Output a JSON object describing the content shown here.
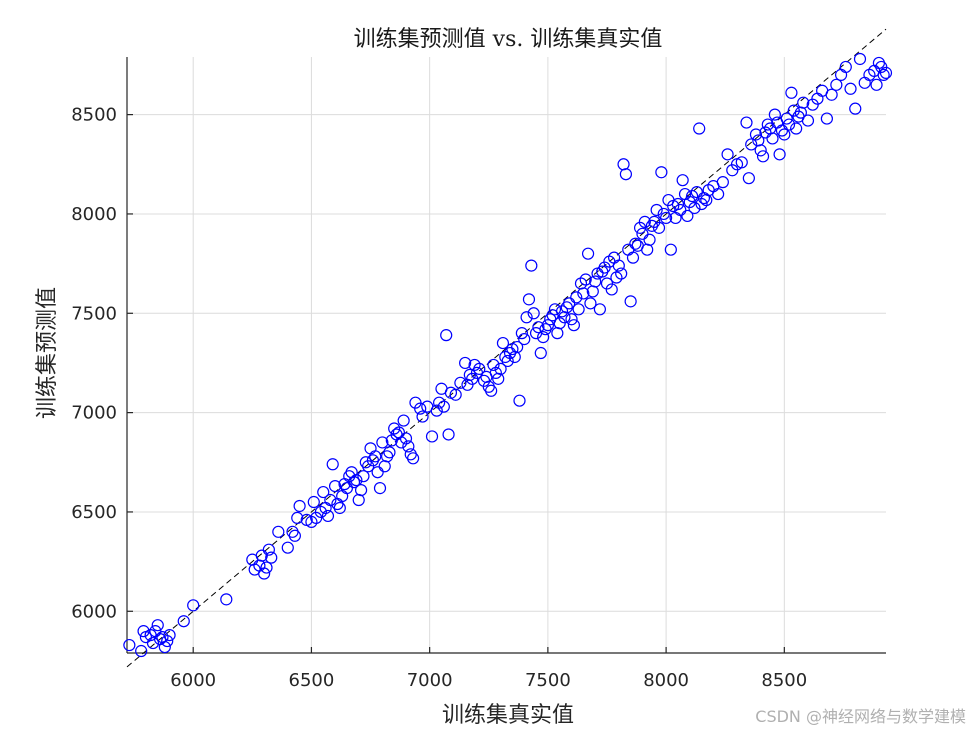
{
  "chart_data": {
    "type": "scatter",
    "title": "训练集预测值 vs. 训练集真实值",
    "xlabel": "训练集真实值",
    "ylabel": "训练集预测值",
    "xlim": [
      5720,
      8930
    ],
    "ylim": [
      5790,
      8790
    ],
    "xticks": [
      6000,
      6500,
      7000,
      7500,
      8000,
      8500
    ],
    "yticks": [
      6000,
      6500,
      7000,
      7500,
      8000,
      8500
    ],
    "grid": true,
    "point_color": "#0000ff",
    "reference_line": {
      "style": "dashed",
      "color": "#000000",
      "from": [
        5720,
        5720
      ],
      "to": [
        8930,
        8930
      ]
    },
    "series": [
      {
        "marker": "circle",
        "points": [
          [
            5730,
            5830
          ],
          [
            5780,
            5800
          ],
          [
            5790,
            5900
          ],
          [
            5800,
            5870
          ],
          [
            5820,
            5880
          ],
          [
            5830,
            5840
          ],
          [
            5840,
            5900
          ],
          [
            5850,
            5930
          ],
          [
            5860,
            5860
          ],
          [
            5870,
            5870
          ],
          [
            5880,
            5820
          ],
          [
            5890,
            5850
          ],
          [
            5900,
            5880
          ],
          [
            5960,
            5950
          ],
          [
            6000,
            6030
          ],
          [
            6140,
            6060
          ],
          [
            6250,
            6260
          ],
          [
            6260,
            6210
          ],
          [
            6280,
            6230
          ],
          [
            6290,
            6280
          ],
          [
            6300,
            6190
          ],
          [
            6310,
            6220
          ],
          [
            6320,
            6310
          ],
          [
            6330,
            6270
          ],
          [
            6360,
            6400
          ],
          [
            6400,
            6320
          ],
          [
            6420,
            6400
          ],
          [
            6430,
            6380
          ],
          [
            6440,
            6470
          ],
          [
            6450,
            6530
          ],
          [
            6480,
            6460
          ],
          [
            6500,
            6450
          ],
          [
            6510,
            6550
          ],
          [
            6520,
            6470
          ],
          [
            6540,
            6500
          ],
          [
            6550,
            6600
          ],
          [
            6560,
            6520
          ],
          [
            6570,
            6480
          ],
          [
            6580,
            6560
          ],
          [
            6590,
            6740
          ],
          [
            6600,
            6630
          ],
          [
            6610,
            6540
          ],
          [
            6620,
            6520
          ],
          [
            6630,
            6580
          ],
          [
            6640,
            6640
          ],
          [
            6650,
            6620
          ],
          [
            6660,
            6680
          ],
          [
            6670,
            6700
          ],
          [
            6680,
            6650
          ],
          [
            6690,
            6660
          ],
          [
            6700,
            6560
          ],
          [
            6710,
            6610
          ],
          [
            6720,
            6680
          ],
          [
            6730,
            6750
          ],
          [
            6740,
            6730
          ],
          [
            6750,
            6820
          ],
          [
            6760,
            6760
          ],
          [
            6770,
            6780
          ],
          [
            6780,
            6700
          ],
          [
            6790,
            6620
          ],
          [
            6800,
            6850
          ],
          [
            6810,
            6730
          ],
          [
            6820,
            6780
          ],
          [
            6830,
            6800
          ],
          [
            6840,
            6860
          ],
          [
            6850,
            6920
          ],
          [
            6860,
            6890
          ],
          [
            6870,
            6900
          ],
          [
            6880,
            6850
          ],
          [
            6890,
            6960
          ],
          [
            6900,
            6870
          ],
          [
            6910,
            6830
          ],
          [
            6920,
            6790
          ],
          [
            6930,
            6770
          ],
          [
            6940,
            7050
          ],
          [
            6960,
            7020
          ],
          [
            6970,
            6980
          ],
          [
            6990,
            7030
          ],
          [
            7010,
            6880
          ],
          [
            7030,
            7010
          ],
          [
            7040,
            7050
          ],
          [
            7050,
            7120
          ],
          [
            7060,
            7030
          ],
          [
            7070,
            7390
          ],
          [
            7080,
            6890
          ],
          [
            7090,
            7100
          ],
          [
            7110,
            7090
          ],
          [
            7130,
            7150
          ],
          [
            7150,
            7250
          ],
          [
            7160,
            7140
          ],
          [
            7170,
            7190
          ],
          [
            7180,
            7170
          ],
          [
            7190,
            7240
          ],
          [
            7200,
            7200
          ],
          [
            7210,
            7220
          ],
          [
            7230,
            7160
          ],
          [
            7240,
            7180
          ],
          [
            7250,
            7130
          ],
          [
            7260,
            7110
          ],
          [
            7270,
            7240
          ],
          [
            7280,
            7200
          ],
          [
            7290,
            7170
          ],
          [
            7300,
            7220
          ],
          [
            7310,
            7350
          ],
          [
            7320,
            7280
          ],
          [
            7330,
            7260
          ],
          [
            7340,
            7300
          ],
          [
            7350,
            7320
          ],
          [
            7360,
            7280
          ],
          [
            7370,
            7330
          ],
          [
            7380,
            7060
          ],
          [
            7390,
            7400
          ],
          [
            7400,
            7370
          ],
          [
            7410,
            7480
          ],
          [
            7420,
            7570
          ],
          [
            7430,
            7740
          ],
          [
            7440,
            7500
          ],
          [
            7450,
            7400
          ],
          [
            7460,
            7430
          ],
          [
            7470,
            7300
          ],
          [
            7480,
            7380
          ],
          [
            7490,
            7420
          ],
          [
            7500,
            7440
          ],
          [
            7510,
            7470
          ],
          [
            7520,
            7490
          ],
          [
            7530,
            7520
          ],
          [
            7540,
            7400
          ],
          [
            7550,
            7450
          ],
          [
            7560,
            7510
          ],
          [
            7570,
            7480
          ],
          [
            7580,
            7530
          ],
          [
            7590,
            7550
          ],
          [
            7600,
            7470
          ],
          [
            7610,
            7440
          ],
          [
            7620,
            7580
          ],
          [
            7630,
            7520
          ],
          [
            7640,
            7650
          ],
          [
            7650,
            7600
          ],
          [
            7660,
            7670
          ],
          [
            7670,
            7800
          ],
          [
            7680,
            7550
          ],
          [
            7690,
            7610
          ],
          [
            7700,
            7660
          ],
          [
            7710,
            7700
          ],
          [
            7720,
            7520
          ],
          [
            7730,
            7710
          ],
          [
            7740,
            7730
          ],
          [
            7750,
            7650
          ],
          [
            7760,
            7760
          ],
          [
            7770,
            7620
          ],
          [
            7780,
            7780
          ],
          [
            7790,
            7680
          ],
          [
            7800,
            7740
          ],
          [
            7810,
            7700
          ],
          [
            7820,
            8250
          ],
          [
            7830,
            8200
          ],
          [
            7840,
            7820
          ],
          [
            7850,
            7560
          ],
          [
            7860,
            7780
          ],
          [
            7870,
            7850
          ],
          [
            7880,
            7840
          ],
          [
            7890,
            7930
          ],
          [
            7900,
            7900
          ],
          [
            7910,
            7960
          ],
          [
            7920,
            7820
          ],
          [
            7930,
            7870
          ],
          [
            7940,
            7940
          ],
          [
            7950,
            7960
          ],
          [
            7960,
            8020
          ],
          [
            7970,
            7930
          ],
          [
            7980,
            8210
          ],
          [
            7990,
            8000
          ],
          [
            8000,
            7980
          ],
          [
            8010,
            8070
          ],
          [
            8020,
            7820
          ],
          [
            8030,
            8040
          ],
          [
            8040,
            7980
          ],
          [
            8050,
            8050
          ],
          [
            8060,
            8020
          ],
          [
            8070,
            8170
          ],
          [
            8080,
            8100
          ],
          [
            8090,
            7990
          ],
          [
            8100,
            8060
          ],
          [
            8110,
            8090
          ],
          [
            8120,
            8030
          ],
          [
            8130,
            8110
          ],
          [
            8140,
            8430
          ],
          [
            8150,
            8050
          ],
          [
            8160,
            8080
          ],
          [
            8170,
            8070
          ],
          [
            8180,
            8120
          ],
          [
            8200,
            8140
          ],
          [
            8220,
            8100
          ],
          [
            8240,
            8160
          ],
          [
            8260,
            8300
          ],
          [
            8280,
            8220
          ],
          [
            8300,
            8250
          ],
          [
            8320,
            8260
          ],
          [
            8340,
            8460
          ],
          [
            8350,
            8180
          ],
          [
            8360,
            8350
          ],
          [
            8380,
            8400
          ],
          [
            8390,
            8370
          ],
          [
            8400,
            8320
          ],
          [
            8410,
            8290
          ],
          [
            8420,
            8410
          ],
          [
            8430,
            8450
          ],
          [
            8440,
            8430
          ],
          [
            8450,
            8380
          ],
          [
            8460,
            8500
          ],
          [
            8470,
            8460
          ],
          [
            8480,
            8300
          ],
          [
            8490,
            8420
          ],
          [
            8500,
            8400
          ],
          [
            8510,
            8480
          ],
          [
            8520,
            8450
          ],
          [
            8530,
            8610
          ],
          [
            8540,
            8520
          ],
          [
            8550,
            8430
          ],
          [
            8560,
            8490
          ],
          [
            8570,
            8510
          ],
          [
            8580,
            8560
          ],
          [
            8600,
            8470
          ],
          [
            8620,
            8550
          ],
          [
            8640,
            8580
          ],
          [
            8660,
            8620
          ],
          [
            8680,
            8480
          ],
          [
            8700,
            8600
          ],
          [
            8720,
            8650
          ],
          [
            8740,
            8700
          ],
          [
            8760,
            8740
          ],
          [
            8780,
            8630
          ],
          [
            8800,
            8530
          ],
          [
            8820,
            8780
          ],
          [
            8840,
            8660
          ],
          [
            8860,
            8700
          ],
          [
            8880,
            8720
          ],
          [
            8890,
            8650
          ],
          [
            8900,
            8760
          ],
          [
            8910,
            8740
          ],
          [
            8920,
            8700
          ],
          [
            8930,
            8710
          ]
        ]
      }
    ]
  },
  "watermark": "CSDN @神经网络与数学建模"
}
